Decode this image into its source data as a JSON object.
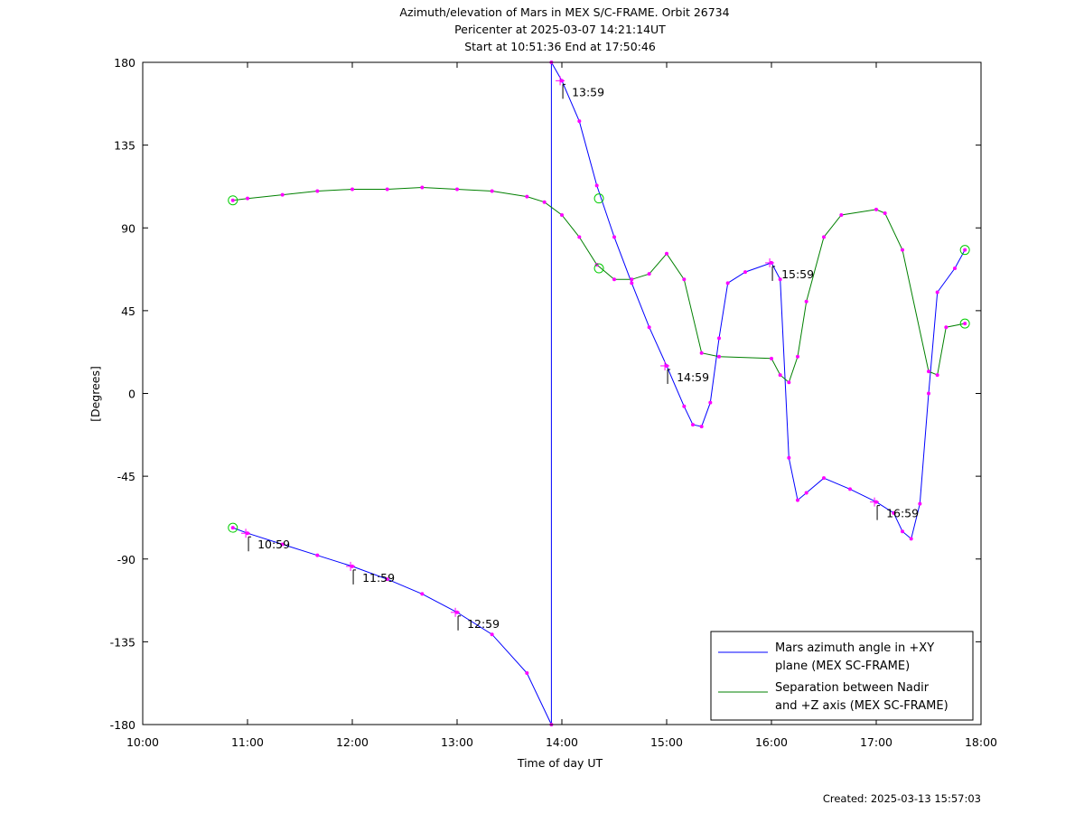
{
  "chart_data": {
    "type": "line",
    "title": "Azimuth/elevation of Mars in MEX S/C-FRAME.  Orbit 26734",
    "subtitle_1": "Pericenter at 2025-03-07 14:21:14UT",
    "subtitle_2": "Start at 10:51:36 End at 17:50:46",
    "xlabel": "Time of day UT",
    "ylabel": "[Degrees]",
    "created": "Created: 2025-03-13 15:57:03",
    "xlim": [
      "10:00",
      "18:00"
    ],
    "ylim": [
      -180,
      180
    ],
    "x_tick_labels": [
      "10:00",
      "11:00",
      "12:00",
      "13:00",
      "14:00",
      "15:00",
      "16:00",
      "17:00",
      "18:00"
    ],
    "y_tick_labels": [
      "180",
      "135",
      "90",
      "45",
      "0",
      "-45",
      "-90",
      "-135",
      "-180"
    ],
    "grid": false,
    "legend_position": "bottom-right",
    "series": [
      {
        "name_line1": "Mars azimuth angle in +XY",
        "name_line2": "plane (MEX SC-FRAME)",
        "color": "#0000ff",
        "segments": [
          [
            [
              "10:51:36",
              -73
            ],
            [
              "11:00",
              -76
            ],
            [
              "11:20",
              -82
            ],
            [
              "11:40",
              -88
            ],
            [
              "12:00",
              -94
            ],
            [
              "12:20",
              -101
            ],
            [
              "12:40",
              -109
            ],
            [
              "13:00",
              -119
            ],
            [
              "13:20",
              -131
            ],
            [
              "13:40",
              -152
            ],
            [
              "13:54",
              -180
            ]
          ],
          [
            [
              "13:54",
              180
            ],
            [
              "14:00",
              170
            ],
            [
              "14:10",
              148
            ],
            [
              "14:20",
              113
            ],
            [
              "14:30",
              85
            ],
            [
              "14:40",
              60
            ],
            [
              "14:50",
              36
            ],
            [
              "15:00",
              15
            ],
            [
              "15:10",
              -7
            ],
            [
              "15:15",
              -17
            ],
            [
              "15:20",
              -18
            ],
            [
              "15:25",
              -5
            ],
            [
              "15:30",
              30
            ],
            [
              "15:35",
              60
            ],
            [
              "15:45",
              66
            ],
            [
              "16:00",
              71
            ],
            [
              "16:05",
              62
            ],
            [
              "16:10",
              -35
            ],
            [
              "16:15",
              -58
            ],
            [
              "16:20",
              -54
            ],
            [
              "16:30",
              -46
            ],
            [
              "16:45",
              -52
            ],
            [
              "17:00",
              -59
            ],
            [
              "17:10",
              -65
            ],
            [
              "17:15",
              -75
            ],
            [
              "17:20",
              -79
            ],
            [
              "17:25",
              -60
            ],
            [
              "17:30",
              0
            ],
            [
              "17:35",
              55
            ],
            [
              "17:45",
              68
            ],
            [
              "17:50:46",
              78
            ]
          ]
        ]
      },
      {
        "name_line1": "Separation between Nadir",
        "name_line2": "and +Z axis (MEX SC-FRAME)",
        "color": "#008000",
        "segments": [
          [
            [
              "10:51:36",
              105
            ],
            [
              "11:00",
              106
            ],
            [
              "11:20",
              108
            ],
            [
              "11:40",
              110
            ],
            [
              "12:00",
              111
            ],
            [
              "12:20",
              111
            ],
            [
              "12:40",
              112
            ],
            [
              "13:00",
              111
            ],
            [
              "13:20",
              110
            ],
            [
              "13:40",
              107
            ],
            [
              "13:50",
              104
            ],
            [
              "14:00",
              97
            ],
            [
              "14:10",
              85
            ],
            [
              "14:20",
              70
            ],
            [
              "14:30",
              62
            ],
            [
              "14:40",
              62
            ],
            [
              "14:50",
              65
            ],
            [
              "15:00",
              76
            ],
            [
              "15:10",
              62
            ],
            [
              "15:20",
              22
            ],
            [
              "15:30",
              20
            ],
            [
              "16:00",
              19
            ],
            [
              "16:05",
              10
            ],
            [
              "16:10",
              6
            ],
            [
              "16:15",
              20
            ],
            [
              "16:20",
              50
            ],
            [
              "16:30",
              85
            ],
            [
              "16:40",
              97
            ],
            [
              "17:00",
              100
            ],
            [
              "17:05",
              98
            ],
            [
              "17:15",
              78
            ],
            [
              "17:30",
              12
            ],
            [
              "17:35",
              10
            ],
            [
              "17:40",
              36
            ],
            [
              "17:50:46",
              38
            ]
          ]
        ]
      }
    ],
    "marker_color": "#ff00ff",
    "circle_color": "#00cc00",
    "hour_annotations": [
      {
        "time": "10:59",
        "at": "10:59",
        "y": -76
      },
      {
        "time": "11:59",
        "at": "11:59",
        "y": -94
      },
      {
        "time": "12:59",
        "at": "12:59",
        "y": -119
      },
      {
        "time": "13:59",
        "at": "13:59",
        "y": 170
      },
      {
        "time": "14:59",
        "at": "14:59",
        "y": 15
      },
      {
        "time": "15:59",
        "at": "15:59",
        "y": 71
      },
      {
        "time": "16:59",
        "at": "16:59",
        "y": -59
      }
    ]
  }
}
